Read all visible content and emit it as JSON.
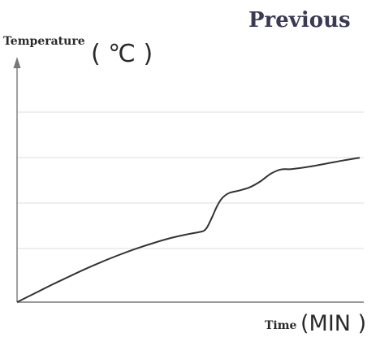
{
  "nav": {
    "previous_label": "Previous"
  },
  "chart_data": {
    "type": "line",
    "title": "",
    "ylabel": "Temperature",
    "ylabel_unit": "( ℃ )",
    "xlabel": "Time",
    "xlabel_unit": "(MIN )",
    "grid": true,
    "xlim": [
      0,
      100
    ],
    "ylim": [
      0,
      100
    ],
    "series": [
      {
        "line_color": "#333333",
        "points": [
          [
            0,
            0
          ],
          [
            5,
            4.5
          ],
          [
            10,
            9
          ],
          [
            15,
            13.3
          ],
          [
            20,
            17.5
          ],
          [
            25,
            21.4
          ],
          [
            30,
            25
          ],
          [
            35,
            28.3
          ],
          [
            40,
            31.2
          ],
          [
            45,
            33.8
          ],
          [
            50,
            35.8
          ],
          [
            53,
            36.8
          ],
          [
            54.5,
            37.5
          ],
          [
            55.5,
            39.5
          ],
          [
            57,
            45
          ],
          [
            58.5,
            51
          ],
          [
            60,
            55
          ],
          [
            62,
            57.5
          ],
          [
            65,
            58.8
          ],
          [
            68,
            60.5
          ],
          [
            71,
            63.5
          ],
          [
            74,
            67.5
          ],
          [
            77,
            69.8
          ],
          [
            80,
            70
          ],
          [
            85,
            71.2
          ],
          [
            90,
            72.8
          ],
          [
            95,
            74.5
          ],
          [
            100,
            76
          ]
        ]
      }
    ]
  },
  "colors": {
    "grid": "#dcdcdc",
    "axis": "#777777",
    "line": "#333333"
  }
}
